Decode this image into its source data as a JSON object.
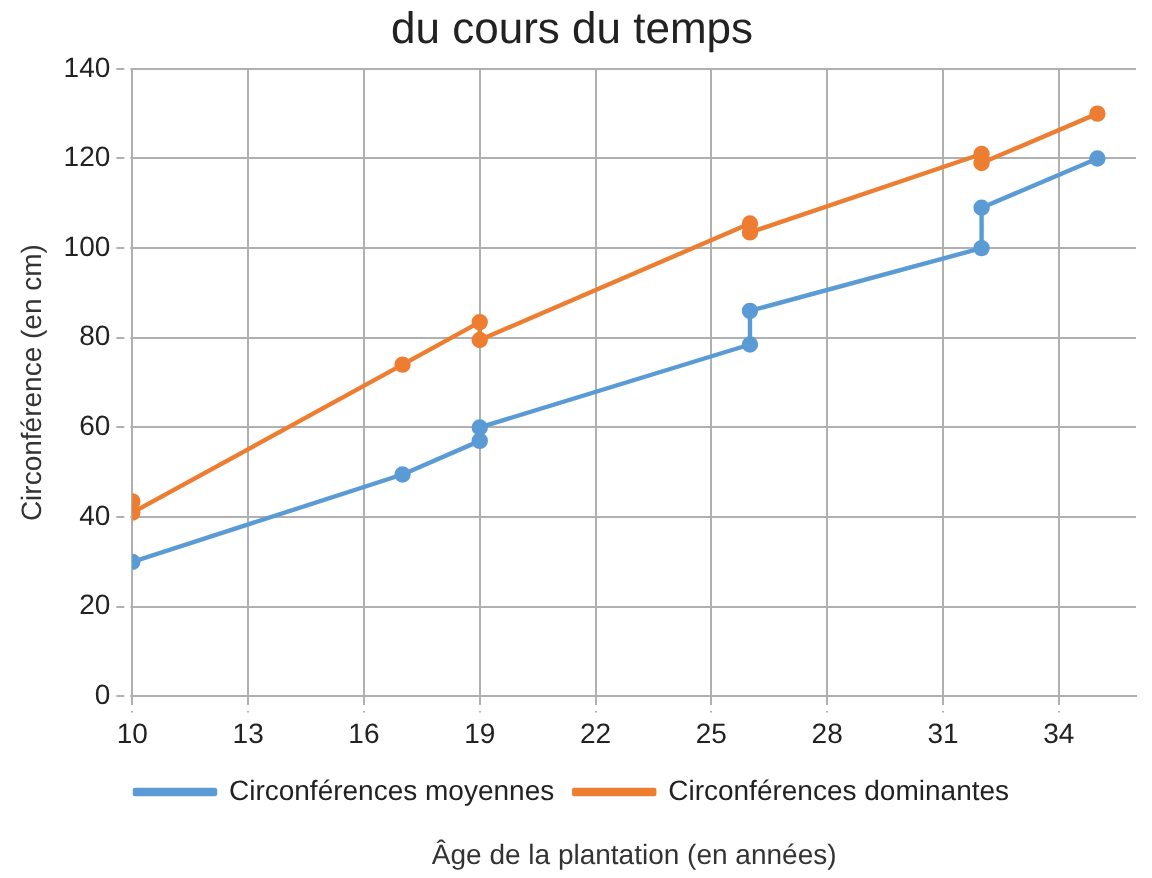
{
  "chart_data": {
    "type": "line",
    "title": "du cours du temps",
    "xlabel": "Âge de la plantation (en années)",
    "ylabel": "Circonférence (en cm)",
    "series": [
      {
        "name": "Circonférences moyennes",
        "color": "#5b9bd5",
        "x": [
          10,
          17,
          19,
          19,
          26,
          26,
          32,
          32,
          35
        ],
        "values": [
          30,
          49.5,
          57,
          60,
          78.5,
          86,
          100,
          109,
          120
        ]
      },
      {
        "name": "Circonférences dominantes",
        "color": "#ed7d31",
        "x": [
          10,
          10,
          17,
          19,
          19,
          26,
          26,
          32,
          32,
          35
        ],
        "values": [
          43.5,
          41,
          74,
          83.5,
          79.5,
          105.5,
          103.5,
          121,
          119,
          130
        ]
      }
    ],
    "xlim": [
      10,
      36
    ],
    "xticks": [
      10,
      13,
      16,
      19,
      22,
      25,
      28,
      31,
      34
    ],
    "ylim": [
      0,
      140
    ],
    "yticks": [
      0,
      20,
      40,
      60,
      80,
      100,
      120,
      140
    ],
    "grid": true,
    "legend": "bottom",
    "marker": "circle",
    "line_style": "solid"
  }
}
